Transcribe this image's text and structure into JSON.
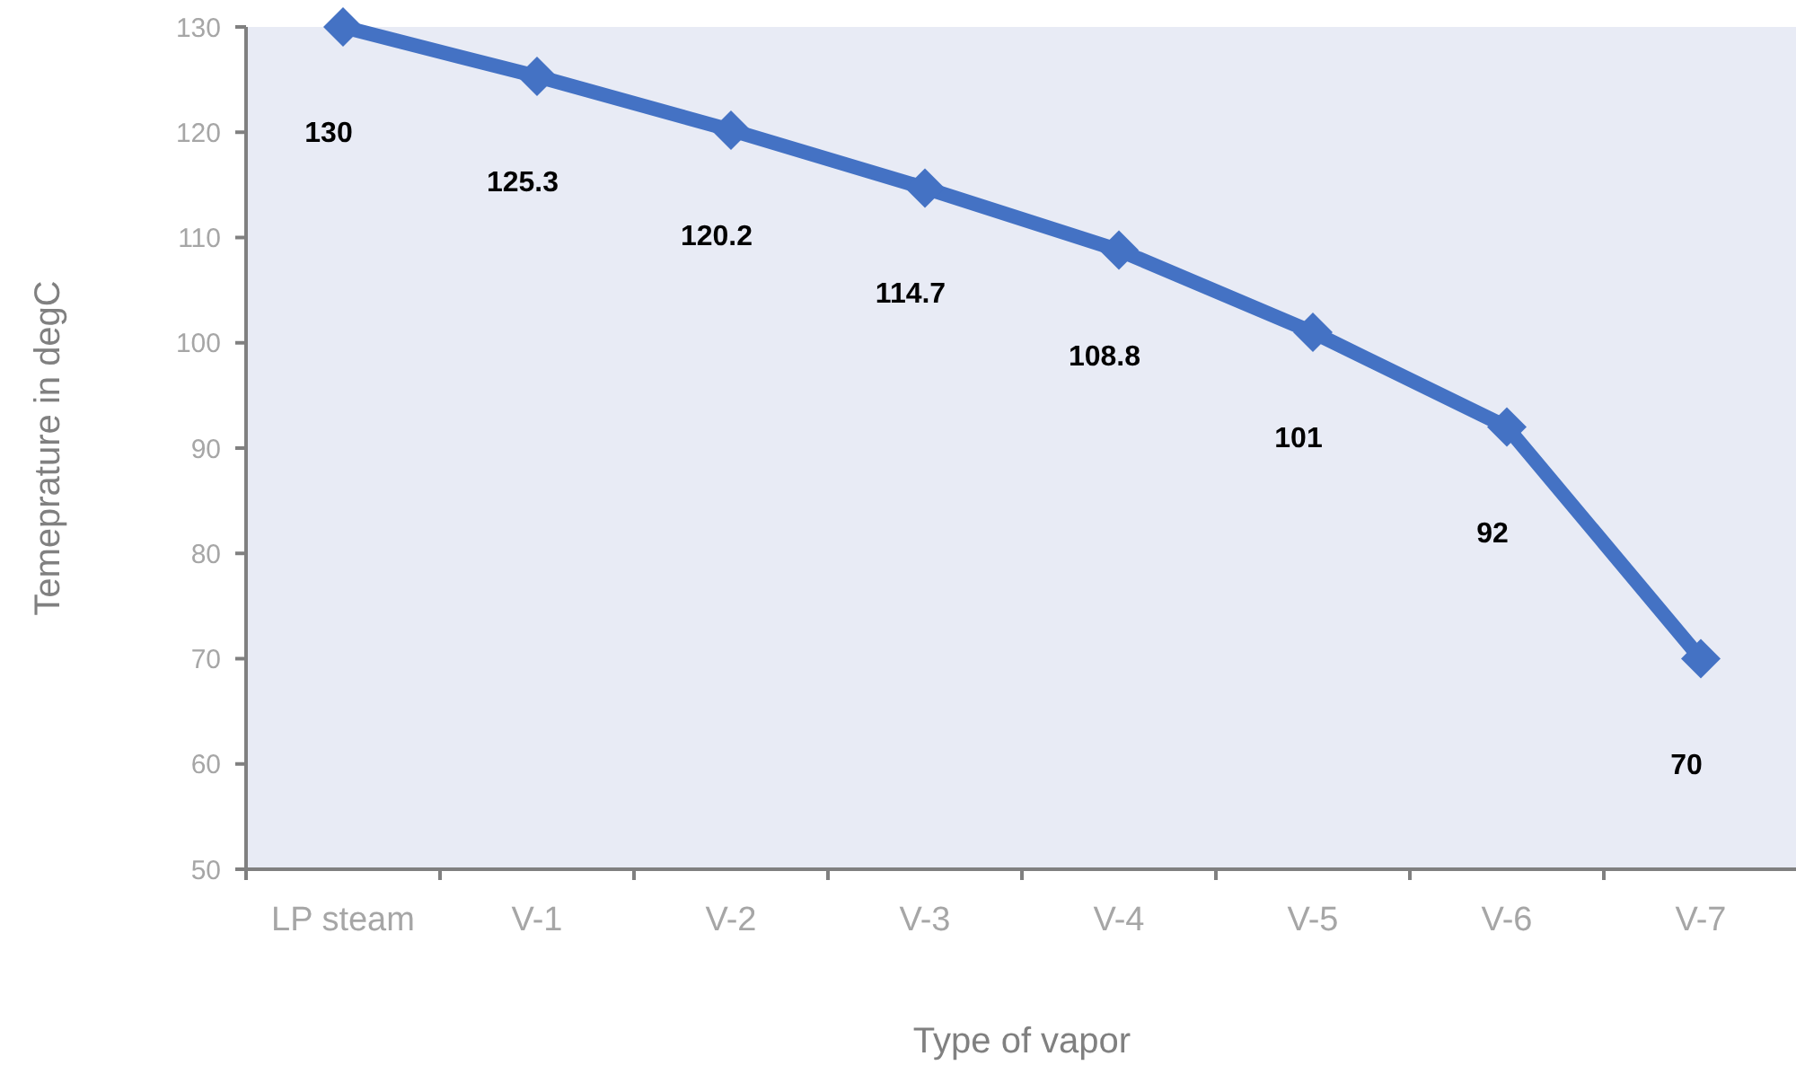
{
  "chart_data": {
    "type": "line",
    "xlabel": "Type of vapor",
    "ylabel": "Temeprature in degC",
    "categories": [
      "LP steam",
      "V-1",
      "V-2",
      "V-3",
      "V-4",
      "V-5",
      "V-6",
      "V-7"
    ],
    "series": [
      {
        "color": "#4472c4",
        "values": [
          130,
          125.3,
          120.2,
          114.7,
          108.8,
          101,
          92,
          70
        ]
      }
    ],
    "ylim": [
      50,
      130
    ],
    "yticks": [
      50,
      60,
      70,
      80,
      90,
      100,
      110,
      120,
      130
    ],
    "marker": "diamond",
    "data_labels": true
  }
}
